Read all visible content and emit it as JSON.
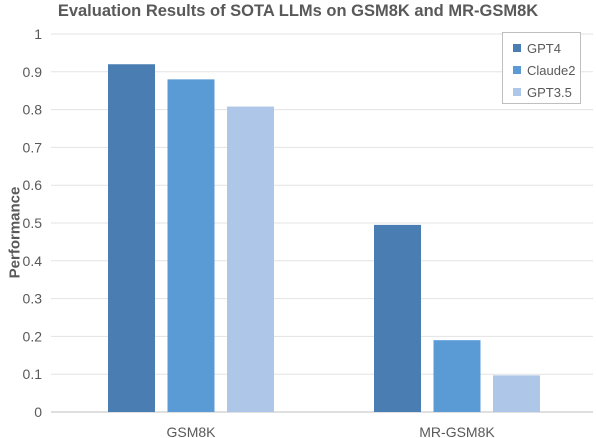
{
  "chart_data": {
    "type": "bar",
    "title": "Evaluation Results of SOTA LLMs on GSM8K and MR-GSM8K",
    "xlabel": "",
    "ylabel": "Performance",
    "categories": [
      "GSM8K",
      "MR-GSM8K"
    ],
    "series": [
      {
        "name": "GPT4",
        "values": [
          0.92,
          0.495
        ],
        "color": "#4a7eb3"
      },
      {
        "name": "Claude2",
        "values": [
          0.88,
          0.19
        ],
        "color": "#5b9bd5"
      },
      {
        "name": "GPT3.5",
        "values": [
          0.808,
          0.097
        ],
        "color": "#aec6e8"
      }
    ],
    "ylim": [
      0,
      1
    ],
    "yticks": [
      "0",
      "0.1",
      "0.2",
      "0.3",
      "0.4",
      "0.5",
      "0.6",
      "0.7",
      "0.8",
      "0.9",
      "1"
    ],
    "grid": true,
    "legend": "top-right"
  }
}
